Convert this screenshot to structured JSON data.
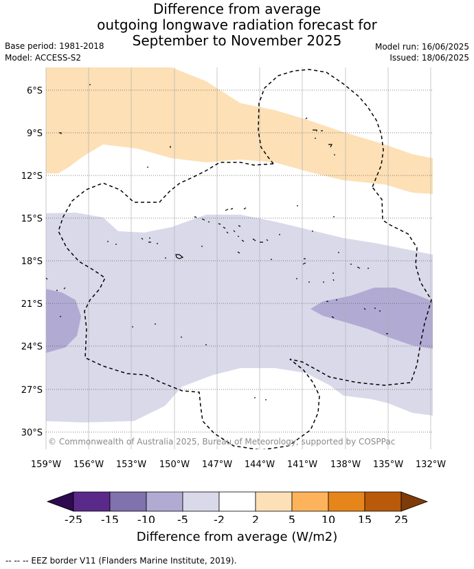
{
  "title": {
    "line1": "Difference from average",
    "line2": "outgoing longwave radiation forecast for",
    "line3": "September to November 2025"
  },
  "meta": {
    "base_period": "Base period: 1981-2018",
    "model": "Model: ACCESS-S2",
    "model_run": "Model run: 16/06/2025",
    "issued": "Issued: 18/06/2025"
  },
  "map": {
    "lon_ticks": [
      "159°W",
      "156°W",
      "153°W",
      "150°W",
      "147°W",
      "144°W",
      "141°W",
      "138°W",
      "135°W",
      "132°W"
    ],
    "lat_ticks": [
      "6°S",
      "9°S",
      "12°S",
      "15°S",
      "18°S",
      "21°S",
      "24°S",
      "27°S",
      "30°S"
    ],
    "credit": "© Commonwealth of Australia 2025, Bureau of Meteorology, supported by COSPPac",
    "colors": {
      "pos_2_5": "#fde0b6",
      "neg_2_5": "#d9d9ea",
      "neg_5_10": "#b1aad3",
      "eez_border": "#000000"
    }
  },
  "colorbar": {
    "labels": [
      "-25",
      "-15",
      "-10",
      "-5",
      "-2",
      "2",
      "5",
      "10",
      "15",
      "25"
    ],
    "colors": [
      "#2e0a4e",
      "#5a2a8a",
      "#8072ad",
      "#b1aad3",
      "#d9d9ea",
      "#ffffff",
      "#fde0b6",
      "#fdb35b",
      "#e6861a",
      "#b85a0a",
      "#7f3b08"
    ],
    "title": "Difference from average (W/m2)"
  },
  "legend_note": "-- -- -- EEZ border V11 (Flanders Marine Institute, 2019)."
}
